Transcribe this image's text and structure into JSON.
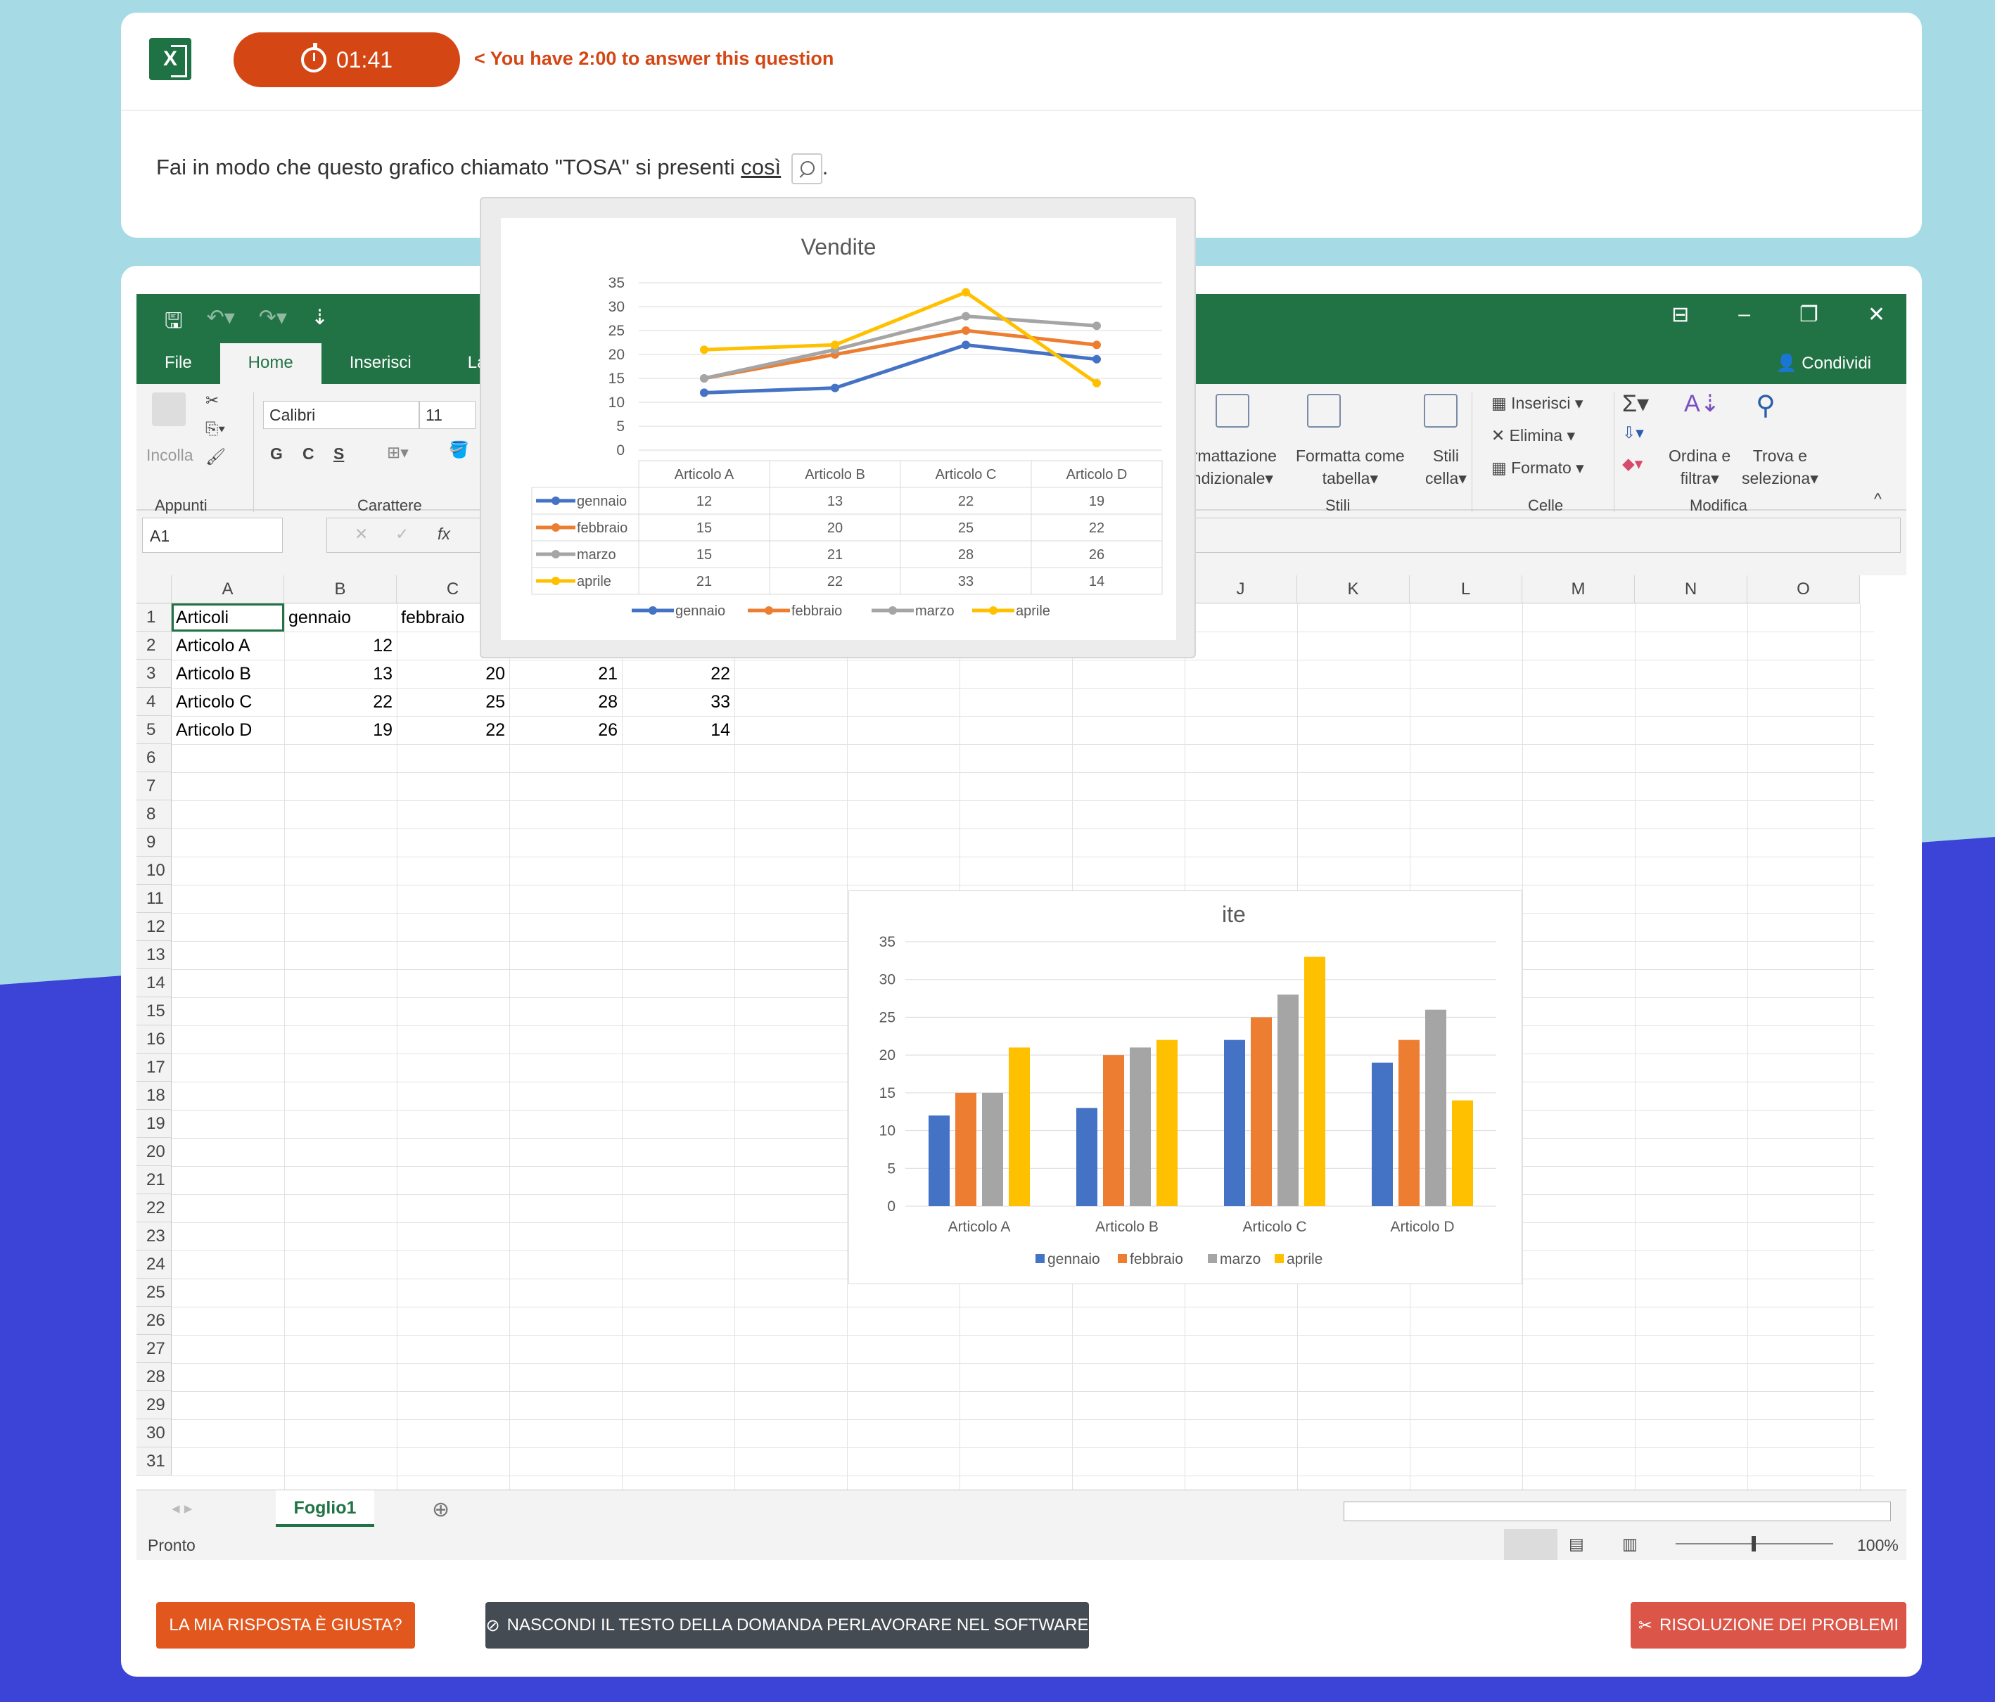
{
  "timer": {
    "time": "01:41",
    "note": "< You have 2:00 to answer this question"
  },
  "question": {
    "text": "Fai in modo che questo grafico chiamato \"TOSA\" si presenti ",
    "link": "così",
    "end": "."
  },
  "excel": {
    "tabs": [
      "File",
      "Home",
      "Inserisci",
      "Layout d"
    ],
    "share": "Condividi",
    "font": "Calibri",
    "size": "11",
    "paste": "Incolla",
    "groups": {
      "clipboard": "Appunti",
      "font": "Carattere",
      "styles": "Stili",
      "cells": "Celle",
      "edit": "Modifica"
    },
    "ribbon": {
      "cond": "ormattazione",
      "cond2": "ondizionale",
      "fmt_table": "Formatta come",
      "fmt_table2": "tabella",
      "cell_styles": "Stili",
      "cell_styles2": "cella",
      "insert": "Inserisci",
      "delete": "Elimina",
      "format": "Formato",
      "sort": "Ordina e",
      "sort2": "filtra",
      "find": "Trova e",
      "find2": "seleziona",
      "bold": "G",
      "italic": "C",
      "under": "S"
    },
    "namebox": "A1",
    "columns": [
      "A",
      "B",
      "C",
      "",
      "",
      "",
      "",
      "",
      "",
      "J",
      "K",
      "L",
      "M",
      "N",
      "O"
    ],
    "rows": [
      [
        "Articoli",
        "gennaio",
        "febbraio",
        "",
        "",
        ""
      ],
      [
        "Articolo A",
        "12",
        "",
        "",
        "",
        ""
      ],
      [
        "Articolo B",
        "13",
        "20",
        "21",
        "22"
      ],
      [
        "Articolo C",
        "22",
        "25",
        "28",
        "33"
      ],
      [
        "Articolo D",
        "19",
        "22",
        "26",
        "14"
      ]
    ],
    "sheet": "Foglio1",
    "status": "Pronto",
    "zoom": "100%"
  },
  "chart_data": [
    {
      "type": "bar",
      "title": "ite",
      "categories": [
        "Articolo A",
        "Articolo B",
        "Articolo C",
        "Articolo D"
      ],
      "series": [
        {
          "name": "gennaio",
          "values": [
            12,
            13,
            22,
            19
          ]
        },
        {
          "name": "febbraio",
          "values": [
            15,
            20,
            25,
            22
          ]
        },
        {
          "name": "marzo",
          "values": [
            15,
            21,
            28,
            26
          ]
        },
        {
          "name": "aprile",
          "values": [
            21,
            22,
            33,
            14
          ]
        }
      ],
      "ylim": [
        0,
        35
      ],
      "yticks": [
        0,
        5,
        10,
        15,
        20,
        25,
        30,
        35
      ],
      "colors": [
        "#4472c4",
        "#ed7d31",
        "#a5a5a5",
        "#ffc000"
      ],
      "legend": "bottom"
    },
    {
      "type": "line",
      "title": "Vendite",
      "categories": [
        "Articolo A",
        "Articolo B",
        "Articolo C",
        "Articolo D"
      ],
      "series": [
        {
          "name": "gennaio",
          "values": [
            12,
            13,
            22,
            19
          ]
        },
        {
          "name": "febbraio",
          "values": [
            15,
            20,
            25,
            22
          ]
        },
        {
          "name": "marzo",
          "values": [
            15,
            21,
            28,
            26
          ]
        },
        {
          "name": "aprile",
          "values": [
            21,
            22,
            33,
            14
          ]
        }
      ],
      "ylim": [
        0,
        35
      ],
      "yticks": [
        0,
        5,
        10,
        15,
        20,
        25,
        30,
        35
      ],
      "colors": [
        "#4472c4",
        "#ed7d31",
        "#a5a5a5",
        "#ffc000"
      ],
      "legend": "bottom",
      "data_table": true
    }
  ],
  "buttons": {
    "check": "LA MIA RISPOSTA È GIUSTA?",
    "hide": "NASCONDI IL TESTO DELLA DOMANDA PERLAVORARE NEL SOFTWARE",
    "trouble": "RISOLUZIONE DEI PROBLEMI"
  }
}
